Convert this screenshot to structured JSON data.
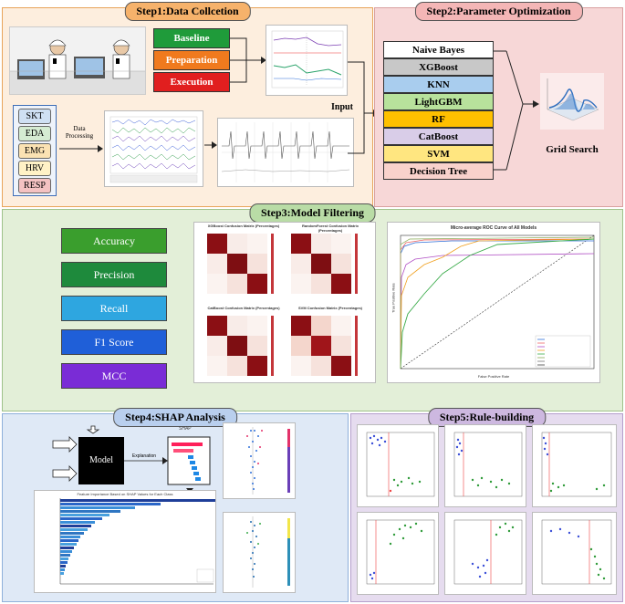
{
  "step1": {
    "title": "Step1:Data Collcetion",
    "phases": [
      "Baseline",
      "Preparation",
      "Execution"
    ],
    "signals": [
      "SKT",
      "EDA",
      "EMG",
      "HRV",
      "RESP"
    ],
    "processing_label": "Data\nProcessing",
    "input_label": "Input",
    "colors": {
      "bg": "#fdeede",
      "baseline": "#1f9b3a",
      "preparation": "#f07a1e",
      "execution": "#e11f1f"
    }
  },
  "step2": {
    "title": "Step2:Parameter Optimization",
    "models": [
      "Naive Bayes",
      "XGBoost",
      "KNN",
      "LightGBM",
      "RF",
      "CatBoost",
      "SVM",
      "Decision Tree"
    ],
    "model_colors": [
      "#ffffff",
      "#c8c8c8",
      "#a9cdee",
      "#b8e29c",
      "#ffc000",
      "#d9cde8",
      "#ffe680",
      "#f9d2cc"
    ],
    "grid_search_label": "Grid Search",
    "colors": {
      "bg": "#f7d7d7"
    }
  },
  "step3": {
    "title": "Step3:Model Filtering",
    "metrics": [
      "Accuracy",
      "Precision",
      "Recall",
      "F1 Score",
      "MCC"
    ],
    "metric_colors": [
      "#3a9e2d",
      "#1e8a3c",
      "#2ea6e0",
      "#1f5fd8",
      "#7a2cd6"
    ],
    "confusion_titles": [
      "XGBoost Confusion Matrix (Percentages)",
      "RandomForest Confusion Matrix (Percentages)",
      "CatBoost Confusion Matrix (Percentages)",
      "SVM Confusion Matrix (Percentages)"
    ],
    "roc_title": "Micro-average ROC Curve of All Models",
    "roc_xlabel": "False Positive Rate",
    "roc_ylabel": "True Positive Rate",
    "colors": {
      "bg": "#e3efd8"
    }
  },
  "step4": {
    "title": "Step4:SHAP Analysis",
    "model_label": "Model",
    "explanation_label": "Explanation",
    "shap_label": "SHAP",
    "bar_title": "Feature Importance Based on SHAP Values for Each Class",
    "colors": {
      "bg": "#dfe9f6"
    }
  },
  "step5": {
    "title": "Step5:Rule-building",
    "colors": {
      "bg": "#e6dcef"
    }
  }
}
